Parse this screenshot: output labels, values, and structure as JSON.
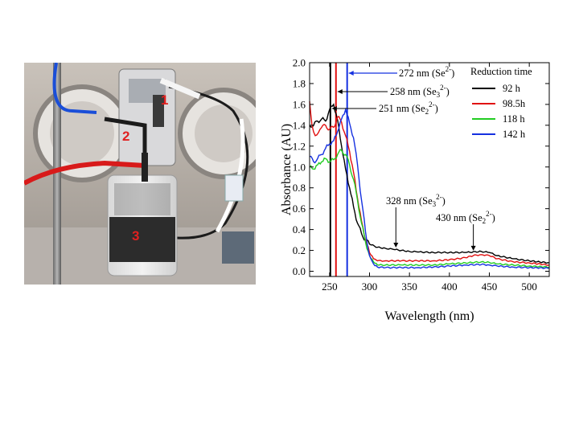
{
  "photo": {
    "description_labels": [
      "1",
      "2",
      "3"
    ],
    "label_color": "#e02020"
  },
  "chart_data": {
    "type": "line",
    "xlabel": "Wavelength (nm)",
    "ylabel": "Absorbance (AU)",
    "xlim": [
      225,
      525
    ],
    "ylim": [
      -0.05,
      2.0
    ],
    "x_ticks": [
      250,
      300,
      350,
      400,
      450,
      500
    ],
    "y_ticks": [
      0.0,
      0.2,
      0.4,
      0.6,
      0.8,
      1.0,
      1.2,
      1.4,
      1.6,
      1.8,
      2.0
    ],
    "y_tick_labels": [
      "0.0",
      "0.2",
      "0.4",
      "0.6",
      "0.8",
      "1.0",
      "1.2",
      "1.4",
      "1.6",
      "1.8",
      "2.0"
    ],
    "legend": {
      "title": "Reduction time",
      "placement": "top-right"
    },
    "series": [
      {
        "name": "92 h",
        "color": "#000000",
        "points": [
          [
            225,
            1.4
          ],
          [
            230,
            1.4
          ],
          [
            235,
            1.44
          ],
          [
            240,
            1.46
          ],
          [
            245,
            1.44
          ],
          [
            250,
            1.55
          ],
          [
            255,
            1.6
          ],
          [
            260,
            1.45
          ],
          [
            265,
            1.2
          ],
          [
            270,
            0.98
          ],
          [
            275,
            0.8
          ],
          [
            280,
            0.62
          ],
          [
            285,
            0.46
          ],
          [
            290,
            0.36
          ],
          [
            295,
            0.3
          ],
          [
            300,
            0.26
          ],
          [
            310,
            0.23
          ],
          [
            320,
            0.22
          ],
          [
            330,
            0.21
          ],
          [
            340,
            0.2
          ],
          [
            350,
            0.19
          ],
          [
            360,
            0.185
          ],
          [
            380,
            0.18
          ],
          [
            400,
            0.18
          ],
          [
            420,
            0.18
          ],
          [
            440,
            0.19
          ],
          [
            450,
            0.18
          ],
          [
            460,
            0.15
          ],
          [
            480,
            0.12
          ],
          [
            500,
            0.1
          ],
          [
            525,
            0.08
          ]
        ]
      },
      {
        "name": "98.5h",
        "color": "#e01010",
        "points": [
          [
            225,
            1.63
          ],
          [
            228,
            1.4
          ],
          [
            232,
            1.3
          ],
          [
            238,
            1.36
          ],
          [
            245,
            1.4
          ],
          [
            250,
            1.36
          ],
          [
            255,
            1.38
          ],
          [
            260,
            1.48
          ],
          [
            265,
            1.43
          ],
          [
            270,
            1.3
          ],
          [
            275,
            1.15
          ],
          [
            280,
            0.95
          ],
          [
            285,
            0.7
          ],
          [
            290,
            0.48
          ],
          [
            295,
            0.3
          ],
          [
            300,
            0.18
          ],
          [
            305,
            0.12
          ],
          [
            310,
            0.1
          ],
          [
            320,
            0.1
          ],
          [
            340,
            0.1
          ],
          [
            360,
            0.1
          ],
          [
            380,
            0.1
          ],
          [
            400,
            0.11
          ],
          [
            420,
            0.13
          ],
          [
            430,
            0.15
          ],
          [
            440,
            0.16
          ],
          [
            450,
            0.15
          ],
          [
            460,
            0.12
          ],
          [
            480,
            0.09
          ],
          [
            500,
            0.08
          ],
          [
            525,
            0.06
          ]
        ]
      },
      {
        "name": "118 h",
        "color": "#22cc22",
        "points": [
          [
            225,
            1.0
          ],
          [
            230,
            0.98
          ],
          [
            235,
            1.02
          ],
          [
            240,
            1.05
          ],
          [
            245,
            1.08
          ],
          [
            250,
            1.05
          ],
          [
            255,
            1.07
          ],
          [
            260,
            1.12
          ],
          [
            265,
            1.16
          ],
          [
            270,
            1.12
          ],
          [
            275,
            1.02
          ],
          [
            280,
            0.88
          ],
          [
            285,
            0.68
          ],
          [
            290,
            0.46
          ],
          [
            295,
            0.28
          ],
          [
            300,
            0.15
          ],
          [
            305,
            0.09
          ],
          [
            310,
            0.06
          ],
          [
            320,
            0.06
          ],
          [
            340,
            0.06
          ],
          [
            360,
            0.06
          ],
          [
            380,
            0.06
          ],
          [
            400,
            0.07
          ],
          [
            420,
            0.08
          ],
          [
            440,
            0.09
          ],
          [
            450,
            0.085
          ],
          [
            460,
            0.07
          ],
          [
            480,
            0.06
          ],
          [
            500,
            0.05
          ],
          [
            525,
            0.04
          ]
        ]
      },
      {
        "name": "142 h",
        "color": "#1530e0",
        "points": [
          [
            225,
            1.1
          ],
          [
            230,
            1.05
          ],
          [
            235,
            1.08
          ],
          [
            240,
            1.12
          ],
          [
            245,
            1.18
          ],
          [
            250,
            1.22
          ],
          [
            255,
            1.25
          ],
          [
            260,
            1.34
          ],
          [
            265,
            1.46
          ],
          [
            270,
            1.55
          ],
          [
            275,
            1.42
          ],
          [
            280,
            1.28
          ],
          [
            285,
            1.02
          ],
          [
            290,
            0.68
          ],
          [
            295,
            0.38
          ],
          [
            300,
            0.15
          ],
          [
            305,
            0.07
          ],
          [
            310,
            0.04
          ],
          [
            320,
            0.035
          ],
          [
            340,
            0.035
          ],
          [
            360,
            0.035
          ],
          [
            380,
            0.04
          ],
          [
            400,
            0.05
          ],
          [
            420,
            0.06
          ],
          [
            440,
            0.065
          ],
          [
            450,
            0.06
          ],
          [
            460,
            0.05
          ],
          [
            480,
            0.04
          ],
          [
            500,
            0.035
          ],
          [
            525,
            0.03
          ]
        ]
      }
    ],
    "vlines": [
      {
        "x": 251,
        "color": "#000000"
      },
      {
        "x": 258,
        "color": "#e01010"
      },
      {
        "x": 272,
        "color": "#1530e0"
      }
    ],
    "annotations": {
      "a272": {
        "main": "272 nm (Se",
        "sup": "2-",
        "close": ")",
        "color": "#1530e0"
      },
      "a258": {
        "main": "258 nm (Se",
        "sub": "3",
        "sup": "2-",
        "close": ")"
      },
      "a251": {
        "main": "251 nm (Se",
        "sub": "2",
        "sup": "2-",
        "close": ")"
      },
      "a328": {
        "main": "328 nm (Se",
        "sub": "3",
        "sup": "2-",
        "close": ")"
      },
      "a430": {
        "main": "430 nm (Se",
        "sub": "2",
        "sup": "2-",
        "close": ")"
      }
    }
  }
}
